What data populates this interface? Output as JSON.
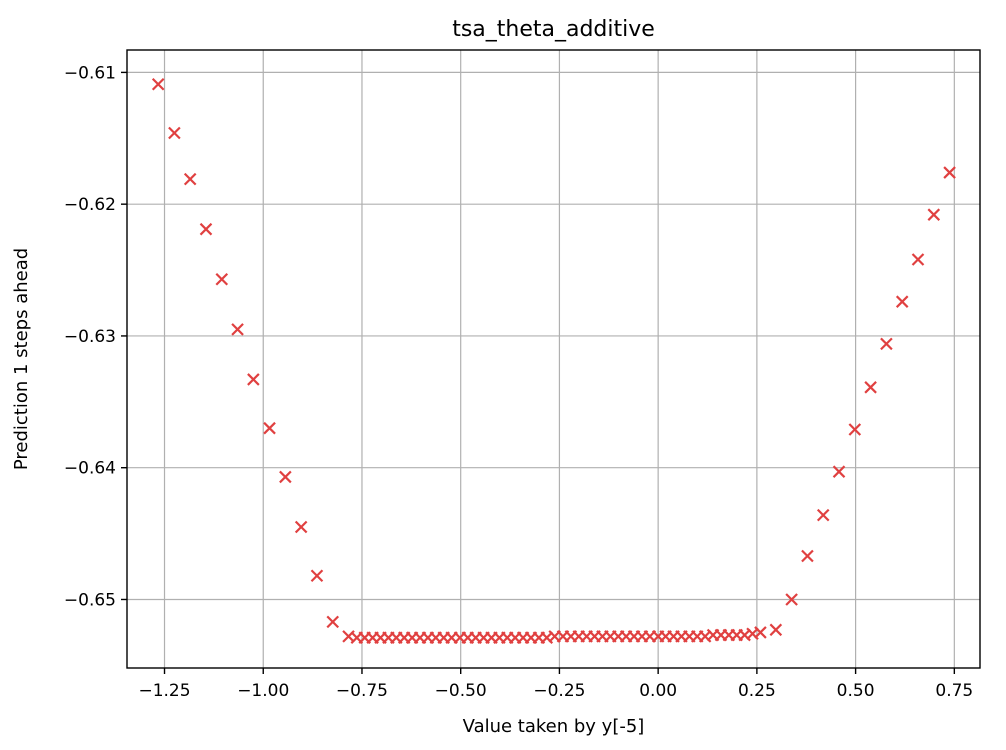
{
  "chart_data": {
    "type": "scatter",
    "title": "tsa_theta_additive",
    "xlabel": "Value taken by y[-5]",
    "ylabel": "Prediction 1 steps ahead",
    "xlim": [
      -1.345,
      0.815
    ],
    "ylim": [
      -0.6552,
      -0.6083
    ],
    "xticks": [
      -1.25,
      -1.0,
      -0.75,
      -0.5,
      -0.25,
      0.0,
      0.25,
      0.5,
      0.75
    ],
    "xtick_labels": [
      "−1.25",
      "−1.00",
      "−0.75",
      "−0.50",
      "−0.25",
      "0.00",
      "0.25",
      "0.50",
      "0.75"
    ],
    "yticks": [
      -0.61,
      -0.62,
      -0.63,
      -0.64,
      -0.65
    ],
    "ytick_labels": [
      "−0.61",
      "−0.62",
      "−0.63",
      "−0.64",
      "−0.65"
    ],
    "grid": true,
    "marker": "x",
    "color": "#e04040",
    "series": [
      {
        "x": [
          -1.266,
          -1.225,
          -1.185,
          -1.145,
          -1.105,
          -1.065,
          -1.025,
          -0.984,
          -0.944,
          -0.904,
          -0.864,
          -0.824,
          -0.784,
          -0.763,
          -0.743,
          -0.723,
          -0.703,
          -0.683,
          -0.663,
          -0.643,
          -0.623,
          -0.603,
          -0.583,
          -0.563,
          -0.543,
          -0.523,
          -0.502,
          -0.482,
          -0.462,
          -0.442,
          -0.422,
          -0.402,
          -0.382,
          -0.362,
          -0.342,
          -0.322,
          -0.302,
          -0.282,
          -0.262,
          -0.241,
          -0.221,
          -0.201,
          -0.181,
          -0.161,
          -0.141,
          -0.121,
          -0.101,
          -0.081,
          -0.061,
          -0.041,
          -0.021,
          0.0,
          0.019,
          0.039,
          0.059,
          0.079,
          0.099,
          0.119,
          0.139,
          0.159,
          0.179,
          0.199,
          0.219,
          0.239,
          0.259,
          0.298,
          0.338,
          0.378,
          0.418,
          0.458,
          0.498,
          0.538,
          0.578,
          0.618,
          0.658,
          0.698,
          0.738
        ],
        "y": [
          -0.6109,
          -0.6146,
          -0.6181,
          -0.6219,
          -0.6257,
          -0.6295,
          -0.6333,
          -0.637,
          -0.6407,
          -0.6445,
          -0.6482,
          -0.6517,
          -0.6528,
          -0.6529,
          -0.6529,
          -0.6529,
          -0.6529,
          -0.6529,
          -0.6529,
          -0.6529,
          -0.6529,
          -0.6529,
          -0.6529,
          -0.6529,
          -0.6529,
          -0.6529,
          -0.6529,
          -0.6529,
          -0.6529,
          -0.6529,
          -0.6529,
          -0.6529,
          -0.6529,
          -0.6529,
          -0.6529,
          -0.6529,
          -0.6529,
          -0.6529,
          -0.6528,
          -0.6528,
          -0.6528,
          -0.6528,
          -0.6528,
          -0.6528,
          -0.6528,
          -0.6528,
          -0.6528,
          -0.6528,
          -0.6528,
          -0.6528,
          -0.6528,
          -0.6528,
          -0.6528,
          -0.6528,
          -0.6528,
          -0.6528,
          -0.6528,
          -0.6528,
          -0.6527,
          -0.6527,
          -0.6527,
          -0.6527,
          -0.6527,
          -0.6526,
          -0.6525,
          -0.6523,
          -0.65,
          -0.6467,
          -0.6436,
          -0.6403,
          -0.6371,
          -0.6339,
          -0.6306,
          -0.6274,
          -0.6242,
          -0.6208,
          -0.6176
        ]
      }
    ]
  }
}
